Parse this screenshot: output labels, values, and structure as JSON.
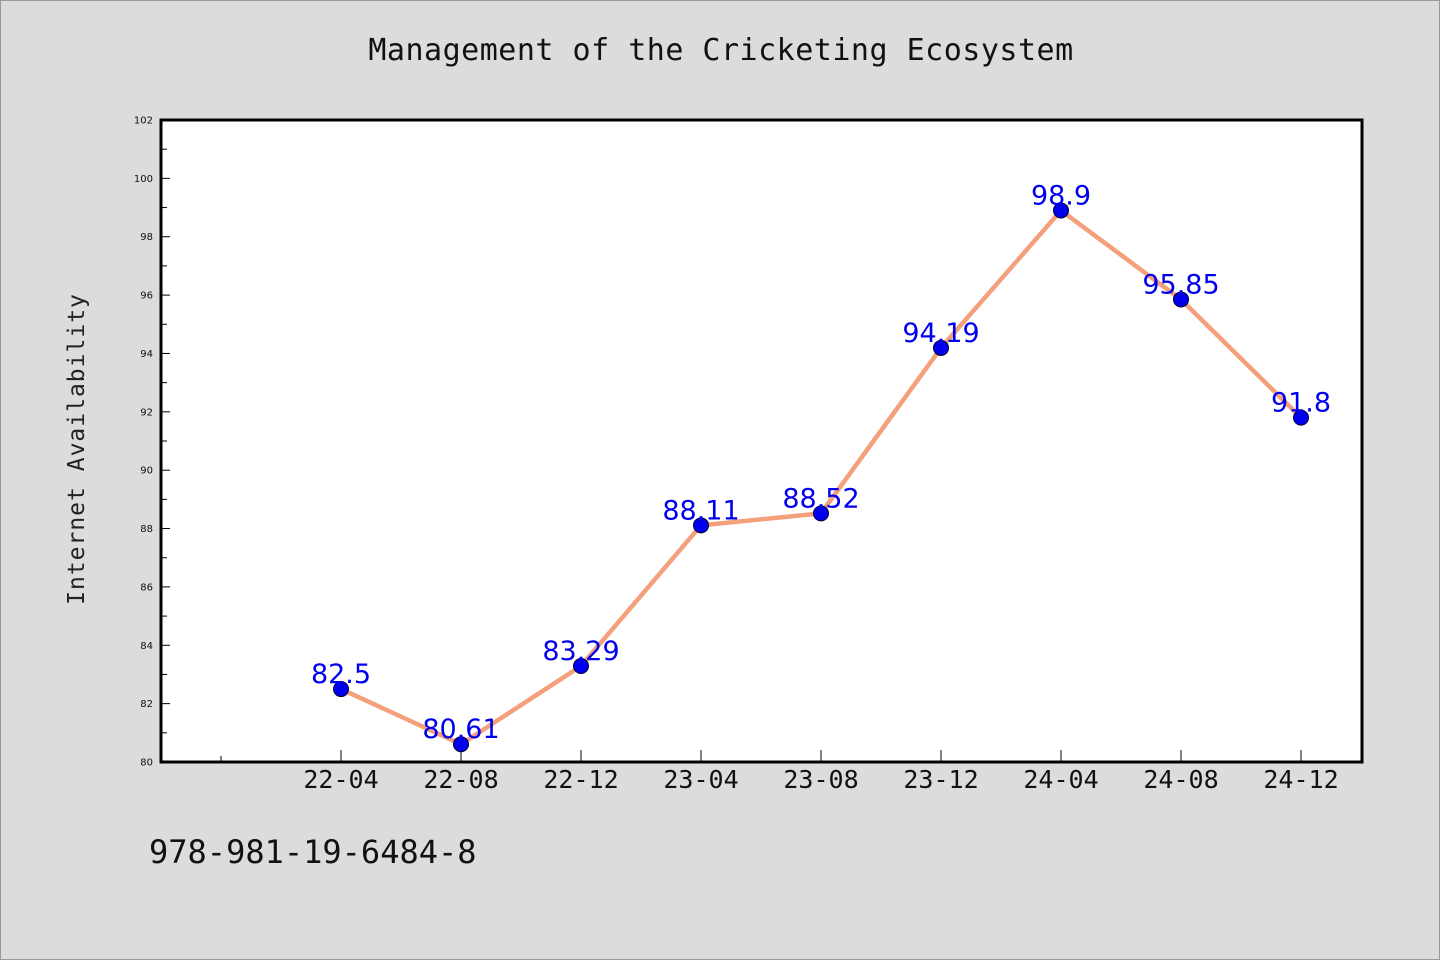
{
  "chart_data": {
    "type": "line",
    "title": "Management of the Cricketing Ecosystem",
    "xlabel": "",
    "ylabel": "Internet Availability",
    "categories": [
      "22-04",
      "22-08",
      "22-12",
      "23-04",
      "23-08",
      "23-12",
      "24-04",
      "24-08",
      "24-12"
    ],
    "series": [
      {
        "values": [
          82.5,
          80.61,
          83.29,
          88.11,
          88.52,
          94.19,
          98.9,
          95.85,
          91.8
        ],
        "labels": [
          "82.5",
          "80.61",
          "83.29",
          "88.11",
          "88.52",
          "94.19",
          "98.9",
          "95.85",
          "91.8"
        ]
      }
    ],
    "ylim": [
      80,
      102
    ],
    "yticks": [
      80,
      82,
      84,
      86,
      88,
      90,
      92,
      94,
      96,
      98,
      100,
      102
    ],
    "grid": false,
    "legend": "none"
  },
  "footer": {
    "code": "978-981-19-6484-8"
  },
  "colors": {
    "line": "#f4a07c",
    "marker": "#0000ee",
    "data_label": "#0000ee",
    "background": "#dcdcdc",
    "plot_area": "#ffffff"
  }
}
